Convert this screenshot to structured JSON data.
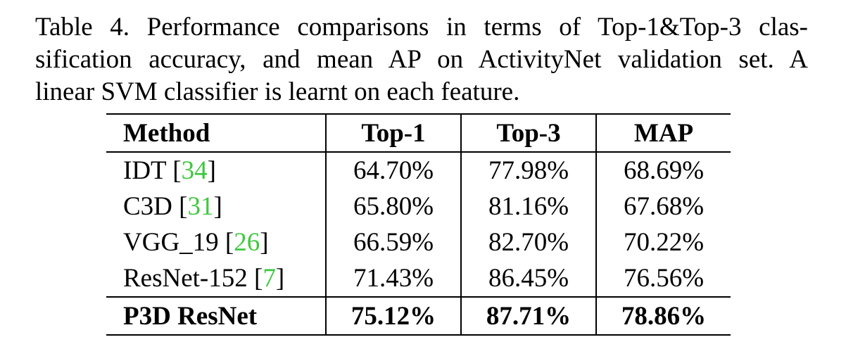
{
  "caption": {
    "line1": "Table 4. Performance comparisons in terms of Top-1&Top-3 clas-",
    "line2": "sification accuracy, and mean AP on ActivityNet validation set. A",
    "line3": "linear SVM classifier is learnt on each feature."
  },
  "table": {
    "headers": [
      "Method",
      "Top-1",
      "Top-3",
      "MAP"
    ],
    "rows": [
      {
        "method": "IDT",
        "ref": "34",
        "top1": "64.70%",
        "top3": "77.98%",
        "map": "68.69%"
      },
      {
        "method": "C3D",
        "ref": "31",
        "top1": "65.80%",
        "top3": "81.16%",
        "map": "67.68%"
      },
      {
        "method": "VGG_19",
        "ref": "26",
        "top1": "66.59%",
        "top3": "82.70%",
        "map": "70.22%"
      },
      {
        "method": "ResNet-152",
        "ref": "7",
        "top1": "71.43%",
        "top3": "86.45%",
        "map": "76.56%"
      }
    ],
    "best": {
      "method": "P3D ResNet",
      "top1": "75.12%",
      "top3": "87.71%",
      "map": "78.86%"
    }
  },
  "colors": {
    "reference_link": "#3ec83e",
    "text": "#000000"
  }
}
